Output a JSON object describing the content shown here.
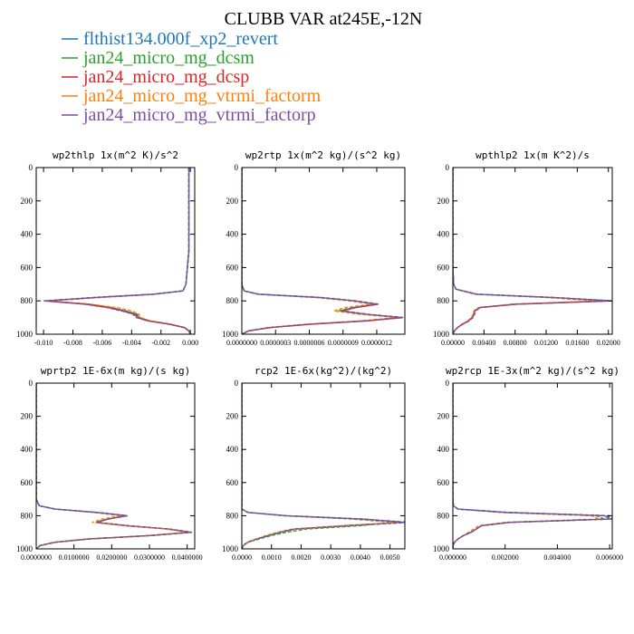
{
  "title": "CLUBB VAR at245E,-12N",
  "legend": [
    {
      "label": "flthist134.000f_xp2_revert",
      "color": "#1f77b4"
    },
    {
      "label": "jan24_micro_mg_dcsm",
      "color": "#2ca02c"
    },
    {
      "label": "jan24_micro_mg_dcsp",
      "color": "#d62728"
    },
    {
      "label": "jan24_micro_mg_vtrmi_factorm",
      "color": "#ff7f0e"
    },
    {
      "label": "jan24_micro_mg_vtrmi_factorp",
      "color": "#7b4ea3"
    }
  ],
  "chart_data": [
    {
      "type": "line",
      "title": "wp2thlp  1x(m^2 K)/s^2",
      "xlim": [
        -0.0105,
        0.0003
      ],
      "ylim": [
        1000,
        0
      ],
      "xticks": [
        -0.01,
        -0.008,
        -0.006,
        -0.004,
        -0.002,
        0.0
      ],
      "xtick_labels": [
        "-0.010",
        "-0.008",
        "-0.006",
        "-0.004",
        "-0.002",
        "0.000"
      ],
      "yticks": [
        0,
        200,
        400,
        600,
        800,
        1000
      ],
      "ytick_labels": [
        "0",
        "200",
        "400",
        "600",
        "800",
        "1000"
      ],
      "y": [
        0,
        100,
        200,
        300,
        400,
        500,
        600,
        700,
        740,
        760,
        780,
        800,
        820,
        840,
        860,
        880,
        900,
        920,
        940,
        960,
        980,
        1000
      ],
      "series": [
        {
          "values": [
            -0.0001,
            -0.0001,
            -0.0001,
            -0.0001,
            -0.0001,
            -0.0001,
            -0.0002,
            -0.0003,
            -0.0005,
            -0.0025,
            -0.0065,
            -0.0098,
            -0.007,
            -0.0055,
            -0.0045,
            -0.0037,
            -0.0035,
            -0.0028,
            -0.0014,
            -0.0004,
            -0.0001,
            0.0
          ]
        },
        {
          "values": [
            -0.0001,
            -0.0001,
            -0.0001,
            -0.0001,
            -0.0001,
            -0.0001,
            -0.0002,
            -0.0003,
            -0.0005,
            -0.0024,
            -0.0063,
            -0.0097,
            -0.0069,
            -0.0054,
            -0.0044,
            -0.0036,
            -0.0035,
            -0.0028,
            -0.0014,
            -0.0004,
            -0.0001,
            0.0
          ]
        },
        {
          "values": [
            -0.0001,
            -0.0001,
            -0.0001,
            -0.0001,
            -0.0001,
            -0.0001,
            -0.0002,
            -0.0003,
            -0.0005,
            -0.0025,
            -0.0066,
            -0.0099,
            -0.0071,
            -0.0056,
            -0.0046,
            -0.0038,
            -0.0036,
            -0.0029,
            -0.0014,
            -0.0004,
            -0.0001,
            0.0
          ]
        },
        {
          "values": [
            -0.0001,
            -0.0001,
            -0.0001,
            -0.0001,
            -0.0001,
            -0.0001,
            -0.0002,
            -0.0003,
            -0.0005,
            -0.0023,
            -0.0062,
            -0.0096,
            -0.0068,
            -0.005,
            -0.004,
            -0.0035,
            -0.0034,
            -0.0027,
            -0.0013,
            -0.0004,
            -0.0001,
            0.0
          ]
        },
        {
          "values": [
            -0.0001,
            -0.0001,
            -0.0001,
            -0.0001,
            -0.0001,
            -0.0001,
            -0.0002,
            -0.0003,
            -0.0005,
            -0.0026,
            -0.0067,
            -0.01,
            -0.0072,
            -0.0057,
            -0.0047,
            -0.0039,
            -0.0037,
            -0.0029,
            -0.0015,
            -0.0004,
            -0.0001,
            0.0
          ]
        }
      ]
    },
    {
      "type": "line",
      "title": "wp2rtp  1x(m^2 kg)/(s^2 kg)",
      "xlim": [
        0.0,
        1.45e-06
      ],
      "ylim": [
        1000,
        0
      ],
      "xticks": [
        0.0,
        3e-07,
        6e-07,
        9e-07,
        1.2e-06
      ],
      "xtick_labels": [
        "0.0000000",
        "0.0000003",
        "0.0000006",
        "0.0000009",
        "0.0000012"
      ],
      "yticks": [
        0,
        200,
        400,
        600,
        800,
        1000
      ],
      "ytick_labels": [
        "0",
        "200",
        "400",
        "600",
        "800",
        "1000"
      ],
      "y": [
        0,
        200,
        400,
        600,
        700,
        740,
        760,
        780,
        800,
        820,
        840,
        860,
        880,
        900,
        920,
        940,
        960,
        980,
        1000
      ],
      "series": [
        {
          "values": [
            0.0,
            0.0,
            0.0,
            0.0,
            0.0,
            2e-08,
            1.5e-07,
            7e-07,
            1e-06,
            1.2e-06,
            1e-06,
            8.8e-07,
            1.1e-06,
            1.42e-06,
            1.1e-06,
            6e-07,
            2.5e-07,
            6e-08,
            0.0
          ]
        },
        {
          "values": [
            0.0,
            0.0,
            0.0,
            0.0,
            0.0,
            2e-08,
            1.4e-07,
            6.8e-07,
            9.8e-07,
            1.18e-06,
            9.8e-07,
            8.6e-07,
            1.08e-06,
            1.4e-06,
            1.08e-06,
            5.8e-07,
            2.4e-07,
            6e-08,
            0.0
          ]
        },
        {
          "values": [
            0.0,
            0.0,
            0.0,
            0.0,
            0.0,
            2e-08,
            1.5e-07,
            7.1e-07,
            1.01e-06,
            1.21e-06,
            1.01e-06,
            8.9e-07,
            1.11e-06,
            1.43e-06,
            1.11e-06,
            6.1e-07,
            2.5e-07,
            6e-08,
            0.0
          ]
        },
        {
          "values": [
            0.0,
            0.0,
            0.0,
            0.0,
            0.0,
            2e-08,
            1.4e-07,
            6.6e-07,
            9.6e-07,
            1.16e-06,
            9.2e-07,
            8.2e-07,
            1.04e-06,
            1.38e-06,
            1.06e-06,
            5.7e-07,
            2.3e-07,
            6e-08,
            0.0
          ]
        },
        {
          "values": [
            0.0,
            0.0,
            0.0,
            0.0,
            0.0,
            2e-08,
            1.5e-07,
            7.2e-07,
            1.02e-06,
            1.22e-06,
            1.02e-06,
            9e-07,
            1.12e-06,
            1.44e-06,
            1.12e-06,
            6.2e-07,
            2.6e-07,
            6e-08,
            0.0
          ]
        }
      ]
    },
    {
      "type": "line",
      "title": "wpthlp2  1x(m K^2)/s",
      "xlim": [
        0.0,
        0.0205
      ],
      "ylim": [
        1000,
        0
      ],
      "xticks": [
        0.0,
        0.004,
        0.008,
        0.012,
        0.016,
        0.02
      ],
      "xtick_labels": [
        "0.00000",
        "0.00400",
        "0.00800",
        "0.01200",
        "0.01600",
        "0.02000"
      ],
      "yticks": [
        0,
        200,
        400,
        600,
        800,
        1000
      ],
      "ytick_labels": [
        "0",
        "200",
        "400",
        "600",
        "800",
        "1000"
      ],
      "y": [
        0,
        200,
        400,
        600,
        700,
        730,
        760,
        780,
        800,
        820,
        840,
        860,
        880,
        900,
        920,
        940,
        960,
        980,
        1000
      ],
      "series": [
        {
          "values": [
            0.0,
            0.0,
            0.0,
            0.0,
            0.0001,
            0.0004,
            0.003,
            0.013,
            0.0203,
            0.008,
            0.0035,
            0.0028,
            0.0027,
            0.0025,
            0.002,
            0.0012,
            0.0006,
            0.0002,
            0.0
          ]
        },
        {
          "values": [
            0.0,
            0.0,
            0.0,
            0.0,
            0.0001,
            0.0004,
            0.0029,
            0.0127,
            0.0199,
            0.0078,
            0.0034,
            0.0028,
            0.0027,
            0.0025,
            0.002,
            0.0012,
            0.0006,
            0.0002,
            0.0
          ]
        },
        {
          "values": [
            0.0,
            0.0,
            0.0,
            0.0,
            0.0001,
            0.0004,
            0.0031,
            0.0131,
            0.0204,
            0.0081,
            0.0035,
            0.0028,
            0.0027,
            0.0025,
            0.002,
            0.0012,
            0.0006,
            0.0002,
            0.0
          ]
        },
        {
          "values": [
            0.0,
            0.0,
            0.0,
            0.0,
            0.0001,
            0.0004,
            0.0028,
            0.012,
            0.0185,
            0.0075,
            0.0033,
            0.0027,
            0.0026,
            0.0024,
            0.0019,
            0.0012,
            0.0006,
            0.0002,
            0.0
          ]
        },
        {
          "values": [
            0.0,
            0.0,
            0.0,
            0.0,
            0.0001,
            0.0004,
            0.0031,
            0.0132,
            0.0205,
            0.0082,
            0.0036,
            0.0029,
            0.0028,
            0.0026,
            0.0021,
            0.0013,
            0.0006,
            0.0002,
            0.0
          ]
        }
      ]
    },
    {
      "type": "line",
      "title": "wprtp2  1E-6x(m kg)/(s kg)",
      "xlim": [
        0.0,
        0.042
      ],
      "ylim": [
        1000,
        0
      ],
      "xticks": [
        0.0,
        0.01,
        0.02,
        0.03,
        0.04
      ],
      "xtick_labels": [
        "0.0000000",
        "0.0100000",
        "0.0200000",
        "0.0300000",
        "0.0400000"
      ],
      "yticks": [
        0,
        200,
        400,
        600,
        800,
        1000
      ],
      "ytick_labels": [
        "0",
        "200",
        "400",
        "600",
        "800",
        "1000"
      ],
      "y": [
        0,
        200,
        400,
        600,
        700,
        740,
        760,
        780,
        800,
        820,
        840,
        860,
        880,
        900,
        920,
        940,
        960,
        980,
        1000
      ],
      "series": [
        {
          "values": [
            0.0,
            0.0,
            0.0,
            0.0,
            0.0,
            0.0008,
            0.005,
            0.016,
            0.024,
            0.019,
            0.016,
            0.024,
            0.035,
            0.041,
            0.03,
            0.014,
            0.005,
            0.001,
            0.0
          ]
        },
        {
          "values": [
            0.0,
            0.0,
            0.0,
            0.0,
            0.0,
            0.0008,
            0.0049,
            0.0158,
            0.0238,
            0.0188,
            0.0158,
            0.0238,
            0.0348,
            0.0408,
            0.0298,
            0.0138,
            0.0049,
            0.001,
            0.0
          ]
        },
        {
          "values": [
            0.0,
            0.0,
            0.0,
            0.0,
            0.0,
            0.0008,
            0.0051,
            0.0161,
            0.0241,
            0.0191,
            0.0161,
            0.0241,
            0.0351,
            0.0412,
            0.0301,
            0.0141,
            0.0051,
            0.001,
            0.0
          ]
        },
        {
          "values": [
            0.0,
            0.0,
            0.0,
            0.0,
            0.0,
            0.0008,
            0.0048,
            0.015,
            0.0225,
            0.0175,
            0.0148,
            0.023,
            0.034,
            0.04,
            0.0295,
            0.0135,
            0.0048,
            0.001,
            0.0
          ]
        },
        {
          "values": [
            0.0,
            0.0,
            0.0,
            0.0,
            0.0,
            0.0008,
            0.0052,
            0.0162,
            0.0242,
            0.0192,
            0.0162,
            0.0242,
            0.0352,
            0.0413,
            0.0302,
            0.0142,
            0.0052,
            0.001,
            0.0
          ]
        }
      ]
    },
    {
      "type": "line",
      "title": "rcp2  1E-6x(kg^2)/(kg^2)",
      "xlim": [
        0.0,
        0.0055
      ],
      "ylim": [
        1000,
        0
      ],
      "xticks": [
        0.0,
        0.001,
        0.002,
        0.003,
        0.004,
        0.005
      ],
      "xtick_labels": [
        "0.0000",
        "0.0010",
        "0.0020",
        "0.0030",
        "0.0040",
        "0.0050"
      ],
      "yticks": [
        0,
        200,
        400,
        600,
        800,
        1000
      ],
      "ytick_labels": [
        "0",
        "200",
        "400",
        "600",
        "800",
        "1000"
      ],
      "y": [
        0,
        200,
        400,
        600,
        700,
        760,
        780,
        800,
        820,
        840,
        860,
        880,
        900,
        920,
        940,
        960,
        980,
        1000
      ],
      "series": [
        {
          "values": [
            0.0,
            0.0,
            0.0,
            0.0,
            0.0,
            0.0,
            0.0002,
            0.0015,
            0.004,
            0.0055,
            0.0035,
            0.0018,
            0.0013,
            0.0009,
            0.0005,
            0.0002,
            5e-05,
            0.0
          ]
        },
        {
          "values": [
            0.0,
            0.0,
            0.0,
            0.0,
            0.0,
            0.0,
            0.0002,
            0.0014,
            0.0037,
            0.0051,
            0.004,
            0.0022,
            0.0015,
            0.001,
            0.0006,
            0.0002,
            5e-05,
            0.0
          ]
        },
        {
          "values": [
            0.0,
            0.0,
            0.0,
            0.0,
            0.0,
            0.0,
            0.0002,
            0.0015,
            0.0041,
            0.0056,
            0.0036,
            0.0018,
            0.0013,
            0.0009,
            0.0005,
            0.0002,
            5e-05,
            0.0
          ]
        },
        {
          "values": [
            0.0,
            0.0,
            0.0,
            0.0,
            0.0,
            0.0,
            0.0002,
            0.0014,
            0.0039,
            0.0053,
            0.0034,
            0.0017,
            0.0012,
            0.0008,
            0.0005,
            0.0002,
            5e-05,
            0.0
          ]
        },
        {
          "values": [
            0.0,
            0.0,
            0.0,
            0.0,
            0.0,
            0.0,
            0.0002,
            0.0015,
            0.0041,
            0.0056,
            0.0036,
            0.0018,
            0.0013,
            0.0009,
            0.0005,
            0.0002,
            5e-05,
            0.0
          ]
        }
      ]
    },
    {
      "type": "line",
      "title": "wp2rcp  1E-3x(m^2 kg)/(s^2 kg)",
      "xlim": [
        0.0,
        0.0061
      ],
      "ylim": [
        1000,
        0
      ],
      "xticks": [
        0.0,
        0.002,
        0.004,
        0.006
      ],
      "xtick_labels": [
        "0.000000",
        "0.002000",
        "0.004000",
        "0.006000"
      ],
      "yticks": [
        0,
        200,
        400,
        600,
        800,
        1000
      ],
      "ytick_labels": [
        "0",
        "200",
        "400",
        "600",
        "800",
        "1000"
      ],
      "y": [
        0,
        200,
        400,
        600,
        700,
        740,
        760,
        780,
        800,
        820,
        840,
        860,
        880,
        900,
        920,
        940,
        960,
        980,
        1000
      ],
      "series": [
        {
          "values": [
            0.0,
            0.0,
            0.0,
            0.0,
            0.0,
            2e-05,
            0.0002,
            0.002,
            0.0058,
            0.006,
            0.0022,
            0.0011,
            0.0009,
            0.0007,
            0.0004,
            0.0002,
            6e-05,
            1e-05,
            0.0
          ]
        },
        {
          "values": [
            0.0,
            0.0,
            0.0,
            0.0,
            0.0,
            2e-05,
            0.0002,
            0.0019,
            0.0055,
            0.0058,
            0.0021,
            0.0011,
            0.0009,
            0.0007,
            0.0004,
            0.0002,
            6e-05,
            1e-05,
            0.0
          ]
        },
        {
          "values": [
            0.0,
            0.0,
            0.0,
            0.0,
            0.0,
            2e-05,
            0.0002,
            0.0021,
            0.0059,
            0.0061,
            0.0022,
            0.0011,
            0.0009,
            0.0007,
            0.0004,
            0.0002,
            6e-05,
            1e-05,
            0.0
          ]
        },
        {
          "values": [
            0.0,
            0.0,
            0.0,
            0.0,
            0.0,
            2e-05,
            0.0002,
            0.0018,
            0.0053,
            0.0056,
            0.002,
            0.001,
            0.0008,
            0.0006,
            0.0004,
            0.0002,
            6e-05,
            1e-05,
            0.0
          ]
        },
        {
          "values": [
            0.0,
            0.0,
            0.0,
            0.0,
            0.0,
            2e-05,
            0.0002,
            0.0021,
            0.006,
            0.0061,
            0.0022,
            0.0011,
            0.0009,
            0.0007,
            0.0004,
            0.0002,
            6e-05,
            1e-05,
            0.0
          ]
        }
      ]
    }
  ]
}
